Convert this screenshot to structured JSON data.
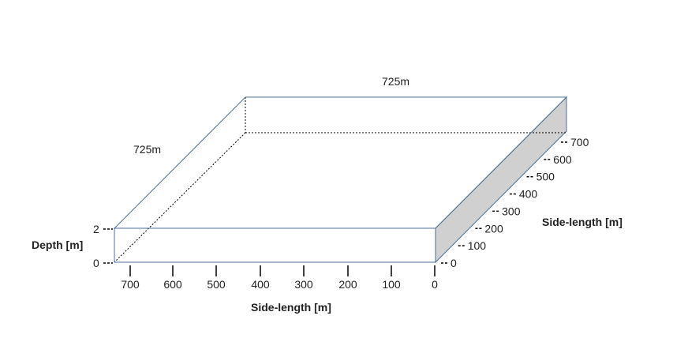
{
  "dimensions": {
    "top_length": "725m",
    "left_length": "725m"
  },
  "depth_axis": {
    "label": "Depth [m]",
    "ticks": [
      "2",
      "0"
    ]
  },
  "front_axis": {
    "label": "Side-length [m]",
    "ticks": [
      "700",
      "600",
      "500",
      "400",
      "300",
      "200",
      "100",
      "0"
    ]
  },
  "side_axis": {
    "label": "Side-length [m]",
    "ticks": [
      "0",
      "100",
      "200",
      "300",
      "400",
      "500",
      "600",
      "700"
    ]
  },
  "colors": {
    "edge": "#4f6f98",
    "side_face": "#d0d0d0",
    "hidden_edge": "#000000",
    "axis": "#000000"
  }
}
